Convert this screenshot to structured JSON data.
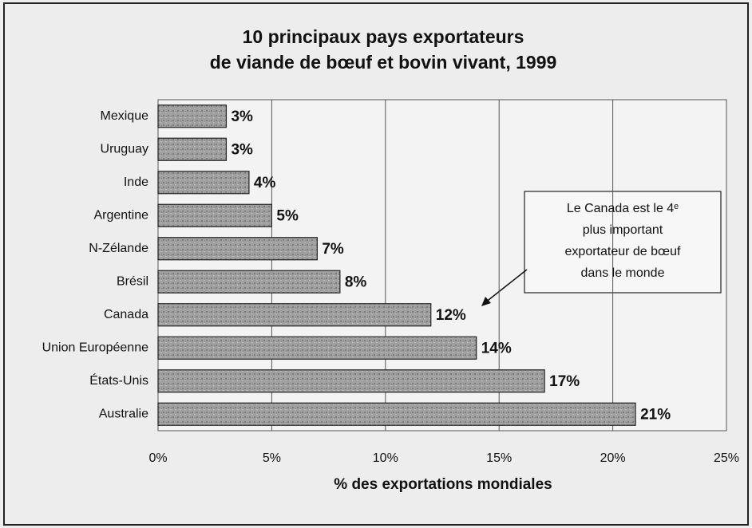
{
  "chart_data": {
    "type": "hbar",
    "title": [
      "10 principaux pays exportateurs",
      "de viande de bœuf et bovin vivant, 1999"
    ],
    "categories": [
      "Mexique",
      "Uruguay",
      "Inde",
      "Argentine",
      "N-Zélande",
      "Brésil",
      "Canada",
      "Union Européenne",
      "États-Unis",
      "Australie"
    ],
    "values": [
      3,
      3,
      4,
      5,
      7,
      8,
      12,
      14,
      17,
      21
    ],
    "value_labels": [
      "3%",
      "3%",
      "4%",
      "5%",
      "7%",
      "8%",
      "12%",
      "14%",
      "17%",
      "21%"
    ],
    "color": "#9a9a9a",
    "xlim": [
      0,
      25
    ],
    "xticks": [
      {
        "value": 0,
        "label": "0%"
      },
      {
        "value": 5,
        "label": "5%"
      },
      {
        "value": 10,
        "label": "10%"
      },
      {
        "value": 15,
        "label": "15%"
      },
      {
        "value": 20,
        "label": "20%"
      },
      {
        "value": 25,
        "label": "25%"
      }
    ],
    "xlabel": "% des exportations mondiales",
    "grid": true,
    "annotation": [
      "Le Canada est le 4ᵉ",
      "plus important",
      "exportateur de bœuf",
      "dans le monde"
    ]
  }
}
